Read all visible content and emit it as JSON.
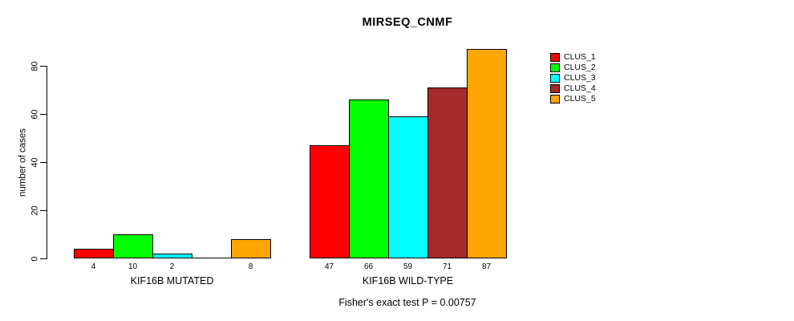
{
  "title": "MIRSEQ_CNMF",
  "footer": "Fisher's exact test P = 0.00757",
  "chart_data": {
    "type": "bar",
    "title": "MIRSEQ_CNMF",
    "xlabel": "",
    "ylabel": "number of cases",
    "categories": [
      "KIF16B MUTATED",
      "KIF16B WILD-TYPE"
    ],
    "series": [
      {
        "name": "CLUS_1",
        "color": "#FF0000",
        "values": [
          4,
          47
        ]
      },
      {
        "name": "CLUS_2",
        "color": "#00FF00",
        "values": [
          10,
          66
        ]
      },
      {
        "name": "CLUS_3",
        "color": "#00FFFF",
        "values": [
          2,
          59
        ]
      },
      {
        "name": "CLUS_4",
        "color": "#A52A2A",
        "values": [
          0,
          71
        ]
      },
      {
        "name": "CLUS_5",
        "color": "#FFA500",
        "values": [
          8,
          87
        ]
      }
    ],
    "bar_value_labels": [
      [
        "4",
        "10",
        "2",
        "",
        "8"
      ],
      [
        "47",
        "66",
        "59",
        "71",
        "87"
      ]
    ],
    "yticks": [
      0,
      20,
      40,
      60,
      80
    ],
    "ylim": [
      0,
      88
    ],
    "grid": false,
    "legend_position": "top-right",
    "legend_entries": [
      "CLUS_1",
      "CLUS_2",
      "CLUS_3",
      "CLUS_4",
      "CLUS_5"
    ],
    "annotation": "Fisher's exact test P = 0.00757"
  }
}
